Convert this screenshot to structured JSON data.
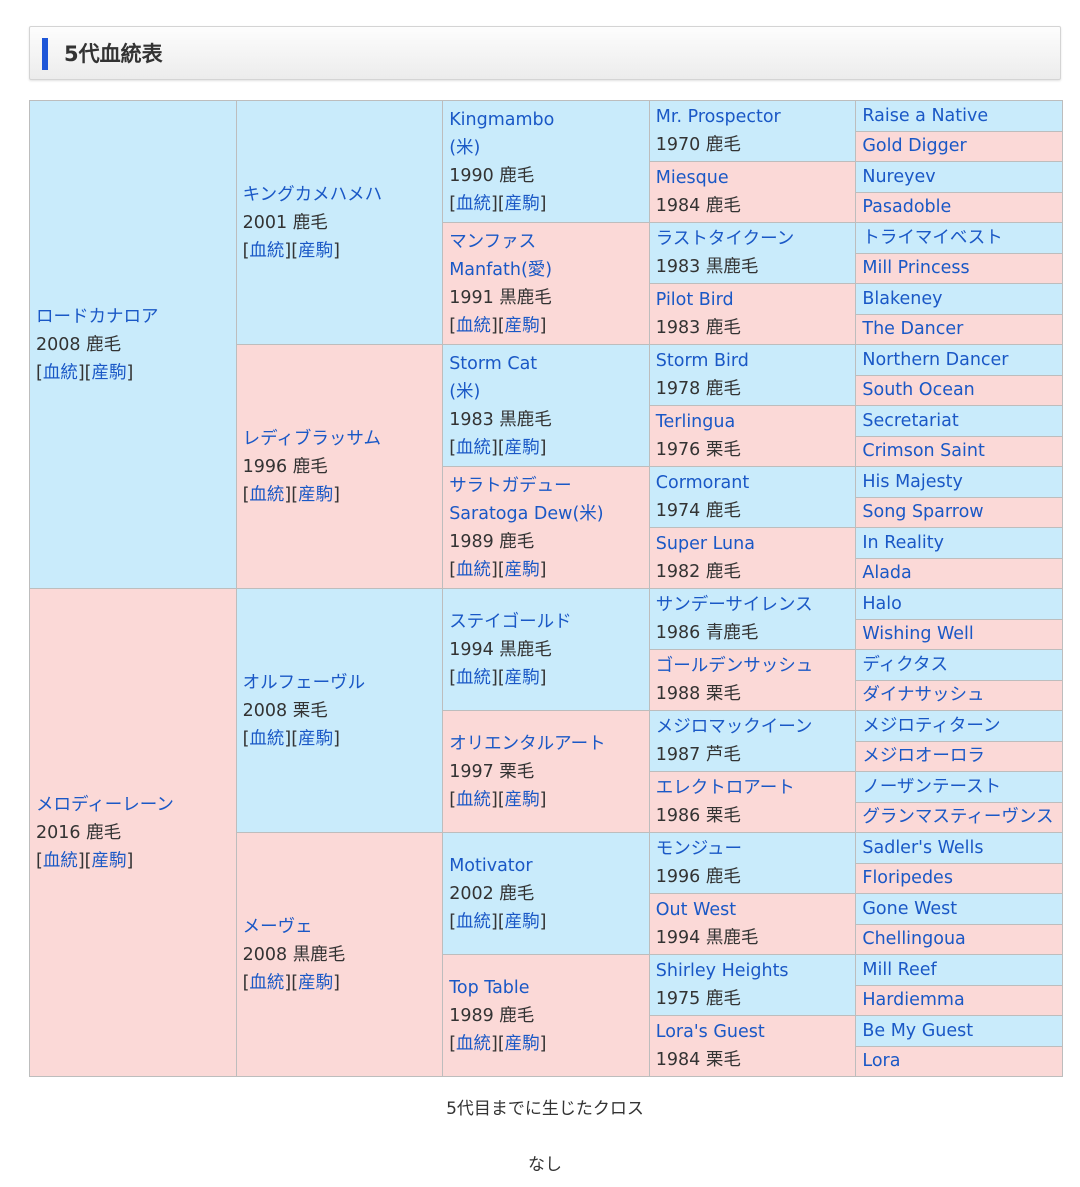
{
  "section": {
    "title": "5代血統表"
  },
  "links": {
    "bloodline": "血統",
    "offspring": "産駒"
  },
  "colors": {
    "sire_bg": "#c9ebfb",
    "dam_bg": "#fbd9d7",
    "link": "#1a58c6",
    "accent": "#1e56d8"
  },
  "pedigree": {
    "s": {
      "name": "ロードカナロア",
      "info": "2008 鹿毛"
    },
    "d": {
      "name": "メロディーレーン",
      "info": "2016 鹿毛"
    },
    "ss": {
      "name": "キングカメハメハ",
      "info": "2001 鹿毛"
    },
    "sd": {
      "name": "レディブラッサム",
      "info": "1996 鹿毛"
    },
    "ds": {
      "name": "オルフェーヴル",
      "info": "2008 栗毛"
    },
    "dd": {
      "name": "メーヴェ",
      "info": "2008 黒鹿毛"
    },
    "sss": {
      "name": "Kingmambo",
      "name2": "(米)",
      "info": "1990 鹿毛"
    },
    "ssd": {
      "name": "マンファス",
      "name2": "Manfath(愛)",
      "info": "1991 黒鹿毛"
    },
    "sds": {
      "name": "Storm Cat",
      "name2": "(米)",
      "info": "1983 黒鹿毛"
    },
    "sdd": {
      "name": "サラトガデュー",
      "name2": "Saratoga Dew(米)",
      "info": "1989 鹿毛"
    },
    "dss": {
      "name": "ステイゴールド",
      "info": "1994 黒鹿毛"
    },
    "dsd": {
      "name": "オリエンタルアート",
      "info": "1997 栗毛"
    },
    "dds": {
      "name": "Motivator",
      "info": "2002 鹿毛"
    },
    "ddd": {
      "name": "Top Table",
      "info": "1989 鹿毛"
    },
    "g4": [
      {
        "name": "Mr. Prospector",
        "info": "1970 鹿毛"
      },
      {
        "name": "Miesque",
        "info": "1984 鹿毛"
      },
      {
        "name": "ラストタイクーン",
        "info": "1983 黒鹿毛"
      },
      {
        "name": "Pilot Bird",
        "info": "1983 鹿毛"
      },
      {
        "name": "Storm Bird",
        "info": "1978 鹿毛"
      },
      {
        "name": "Terlingua",
        "info": "1976 栗毛"
      },
      {
        "name": "Cormorant",
        "info": "1974 鹿毛"
      },
      {
        "name": "Super Luna",
        "info": "1982 鹿毛"
      },
      {
        "name": "サンデーサイレンス",
        "info": "1986 青鹿毛"
      },
      {
        "name": "ゴールデンサッシュ",
        "info": "1988 栗毛"
      },
      {
        "name": "メジロマックイーン",
        "info": "1987 芦毛"
      },
      {
        "name": "エレクトロアート",
        "info": "1986 栗毛"
      },
      {
        "name": "モンジュー",
        "info": "1996 鹿毛"
      },
      {
        "name": "Out West",
        "info": "1994 黒鹿毛"
      },
      {
        "name": "Shirley Heights",
        "info": "1975 鹿毛"
      },
      {
        "name": "Lora's Guest",
        "info": "1984 栗毛"
      }
    ],
    "g5": [
      "Raise a Native",
      "Gold Digger",
      "Nureyev",
      "Pasadoble",
      "トライマイベスト",
      "Mill Princess",
      "Blakeney",
      "The Dancer",
      "Northern Dancer",
      "South Ocean",
      "Secretariat",
      "Crimson Saint",
      "His Majesty",
      "Song Sparrow",
      "In Reality",
      "Alada",
      "Halo",
      "Wishing Well",
      "ディクタス",
      "ダイナサッシュ",
      "メジロティターン",
      "メジロオーロラ",
      "ノーザンテースト",
      "グランマスティーヴンス",
      "Sadler's Wells",
      "Floripedes",
      "Gone West",
      "Chellingoua",
      "Mill Reef",
      "Hardiemma",
      "Be My Guest",
      "Lora"
    ]
  },
  "cross": {
    "title": "5代目までに生じたクロス",
    "value": "なし"
  }
}
